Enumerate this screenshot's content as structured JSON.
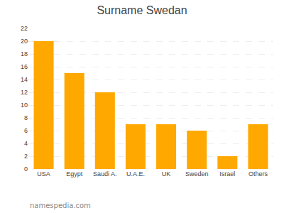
{
  "chart_data": {
    "type": "bar",
    "title": "Surname Swedan",
    "categories": [
      "USA",
      "Egypt",
      "Saudi A.",
      "U.A.E.",
      "UK",
      "Sweden",
      "Israel",
      "Others"
    ],
    "values": [
      20,
      15,
      12,
      7,
      7,
      6,
      2,
      7
    ],
    "color": "#FFA800",
    "ylim": [
      0,
      22
    ],
    "yticks": [
      0,
      2,
      4,
      6,
      8,
      10,
      12,
      14,
      16,
      18,
      20,
      22
    ],
    "grid": true,
    "annotations": [
      "namespedia.com"
    ]
  }
}
